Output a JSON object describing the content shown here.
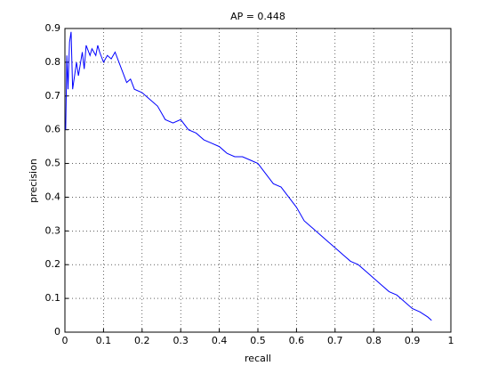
{
  "chart_data": {
    "type": "line",
    "title": "AP = 0.448",
    "x_label": "recall",
    "y_label": "precision",
    "x": [
      0.002,
      0.005,
      0.008,
      0.012,
      0.016,
      0.02,
      0.03,
      0.035,
      0.045,
      0.05,
      0.055,
      0.065,
      0.07,
      0.08,
      0.085,
      0.09,
      0.1,
      0.11,
      0.12,
      0.13,
      0.14,
      0.15,
      0.16,
      0.17,
      0.18,
      0.2,
      0.22,
      0.24,
      0.26,
      0.28,
      0.3,
      0.32,
      0.34,
      0.36,
      0.38,
      0.4,
      0.42,
      0.44,
      0.46,
      0.48,
      0.5,
      0.52,
      0.54,
      0.56,
      0.58,
      0.6,
      0.62,
      0.64,
      0.66,
      0.68,
      0.7,
      0.72,
      0.74,
      0.76,
      0.78,
      0.8,
      0.82,
      0.84,
      0.86,
      0.88,
      0.9,
      0.92,
      0.94,
      0.95
    ],
    "values": [
      0.6,
      0.82,
      0.72,
      0.86,
      0.89,
      0.72,
      0.8,
      0.76,
      0.83,
      0.78,
      0.85,
      0.82,
      0.84,
      0.82,
      0.85,
      0.83,
      0.8,
      0.82,
      0.81,
      0.83,
      0.8,
      0.77,
      0.74,
      0.75,
      0.72,
      0.71,
      0.69,
      0.67,
      0.63,
      0.62,
      0.63,
      0.6,
      0.59,
      0.57,
      0.56,
      0.55,
      0.53,
      0.52,
      0.52,
      0.51,
      0.5,
      0.47,
      0.44,
      0.43,
      0.4,
      0.37,
      0.33,
      0.31,
      0.29,
      0.27,
      0.25,
      0.23,
      0.21,
      0.2,
      0.18,
      0.16,
      0.14,
      0.12,
      0.11,
      0.09,
      0.07,
      0.06,
      0.045,
      0.035
    ],
    "color": "#0000ff",
    "xlim": [
      0,
      1
    ],
    "xticks": [
      0,
      0.1,
      0.2,
      0.3,
      0.4,
      0.5,
      0.6,
      0.7,
      0.8,
      0.9,
      1
    ],
    "ylim": [
      0,
      0.9
    ],
    "yticks": [
      0,
      0.1,
      0.2,
      0.3,
      0.4,
      0.5,
      0.6,
      0.7,
      0.8,
      0.9
    ],
    "grid": true
  }
}
